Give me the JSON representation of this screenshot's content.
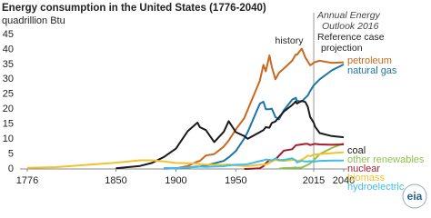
{
  "chart_data": {
    "type": "line",
    "title": "Energy consumption in the United States (1776-2040)",
    "subtitle": "quadrillion Btu",
    "annotations": [
      "history",
      "Annual Energy",
      "Outlook 2016",
      "Reference case",
      "projection"
    ],
    "divider_x": 2015,
    "logo": "eia",
    "x": [
      1776,
      1800,
      1850,
      1870,
      1880,
      1890,
      1900,
      1910,
      1918,
      1920,
      1925,
      1932,
      1940,
      1944,
      1950,
      1957,
      1960,
      1970,
      1973,
      1975,
      1978,
      1980,
      1983,
      1986,
      1990,
      1997,
      2000,
      2001,
      2005,
      2008,
      2010,
      2012,
      2015,
      2016,
      2020,
      2030,
      2040
    ],
    "xlim": [
      1776,
      2040
    ],
    "xticks": [
      1776,
      1850,
      1900,
      1950,
      2015,
      2040
    ],
    "ylim": [
      0,
      45
    ],
    "yticks": [
      0,
      5,
      10,
      15,
      20,
      25,
      30,
      35,
      40,
      45
    ],
    "grid": false,
    "series": [
      {
        "name": "petroleum",
        "color": "#c8691f",
        "values": [
          null,
          null,
          null,
          null,
          null,
          0.1,
          0.2,
          1,
          2.5,
          2.7,
          4.5,
          5,
          7.5,
          9.5,
          13.3,
          17,
          19.9,
          29.5,
          34.8,
          32.7,
          38,
          34.2,
          30,
          32.2,
          33.6,
          36.2,
          38.3,
          38.2,
          40.3,
          37.3,
          36,
          34.7,
          35.5,
          35.8,
          36.2,
          35.5,
          35.7
        ]
      },
      {
        "name": "natural gas",
        "color": "#1a75a8",
        "values": [
          null,
          null,
          null,
          null,
          null,
          0.2,
          0.25,
          0.5,
          0.8,
          0.8,
          1.2,
          1.9,
          2.7,
          3.9,
          6,
          10.2,
          12.4,
          21.8,
          22.5,
          20,
          20,
          20.2,
          17.4,
          16.6,
          19.6,
          23.2,
          23.8,
          22.8,
          22.6,
          23.8,
          24.6,
          26.1,
          28,
          28.4,
          30,
          33,
          35
        ]
      },
      {
        "name": "coal",
        "color": "#1a1a1a",
        "values": [
          null,
          null,
          0.2,
          1,
          2,
          4,
          6.8,
          12.7,
          15.5,
          14,
          13,
          9,
          12.5,
          16,
          12.3,
          11,
          10.1,
          12.3,
          13,
          14,
          13.8,
          15.4,
          15.9,
          17.3,
          19.2,
          21.4,
          22.6,
          21.9,
          22.8,
          22.4,
          20.8,
          17.4,
          15.5,
          14.2,
          12,
          11,
          10.6
        ]
      },
      {
        "name": "other renewables",
        "color": "#8cc34b",
        "values": [
          null,
          null,
          null,
          null,
          null,
          null,
          null,
          null,
          null,
          null,
          null,
          null,
          null,
          null,
          null,
          null,
          null,
          null,
          null,
          null,
          null,
          null,
          null,
          0.1,
          0.3,
          0.4,
          0.5,
          0.4,
          0.5,
          1.0,
          1.4,
          1.9,
          2.9,
          3.3,
          5,
          7,
          8.6
        ]
      },
      {
        "name": "nuclear",
        "color": "#a51d2d",
        "values": [
          null,
          null,
          null,
          null,
          null,
          null,
          null,
          null,
          null,
          null,
          null,
          null,
          null,
          null,
          null,
          0,
          0.01,
          0.24,
          0.9,
          1.9,
          3,
          2.7,
          3.2,
          4.4,
          6.1,
          6.6,
          7.9,
          8,
          8.2,
          8.4,
          8.4,
          8,
          8.3,
          8.4,
          8.2,
          8.1,
          8.2
        ]
      },
      {
        "name": "biomass",
        "color": "#f2c12e",
        "values": [
          0.4,
          0.6,
          2.1,
          2.9,
          2.9,
          2.5,
          2.0,
          1.9,
          1.8,
          1.6,
          1.5,
          1.4,
          1.4,
          1.5,
          1.2,
          1.0,
          1.0,
          1.4,
          1.5,
          1.5,
          2.0,
          2.5,
          3.0,
          2.8,
          2.7,
          3.0,
          3.0,
          2.6,
          3.1,
          3.8,
          4.5,
          4.3,
          4.8,
          4.8,
          5,
          5.3,
          5.6
        ]
      },
      {
        "name": "hydroelectric",
        "color": "#3fbfe8",
        "values": [
          null,
          null,
          null,
          null,
          null,
          0.02,
          0.25,
          0.5,
          0.7,
          0.8,
          0.7,
          0.8,
          0.9,
          1.2,
          1.4,
          1.5,
          1.6,
          2.6,
          2.9,
          3.2,
          3,
          2.9,
          3.5,
          3,
          3,
          3.6,
          2.8,
          2.2,
          2.7,
          2.5,
          2.5,
          2.6,
          2.4,
          2.5,
          2.7,
          2.8,
          2.8
        ]
      }
    ]
  }
}
